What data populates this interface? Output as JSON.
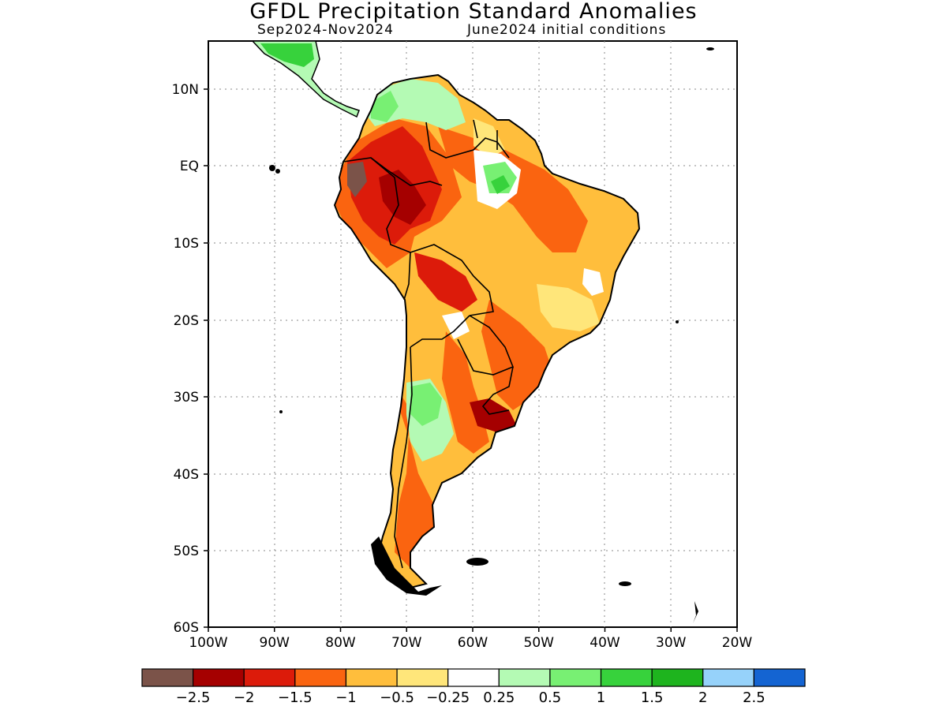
{
  "title": "GFDL Precipitation Standard Anomalies",
  "subtitle_period": "Sep2024-Nov2024",
  "subtitle_init": "June2024 initial conditions",
  "lat_labels": [
    "10N",
    "EQ",
    "10S",
    "20S",
    "30S",
    "40S",
    "50S",
    "60S"
  ],
  "lon_labels": [
    "100W",
    "90W",
    "80W",
    "70W",
    "60W",
    "50W",
    "40W",
    "30W",
    "20W"
  ],
  "colorbar": {
    "colors": [
      "#7b5349",
      "#a50000",
      "#dc1b0a",
      "#fa6410",
      "#ffbe3c",
      "#ffe67a",
      "#ffffff",
      "#b4fab4",
      "#78f073",
      "#37d23c",
      "#1eb41e",
      "#96d2fa",
      "#1464d2"
    ],
    "labels": [
      "−2.5",
      "−2",
      "−1.5",
      "−1",
      "−0.5",
      "−0.25",
      "0.25",
      "0.5",
      "1",
      "1.5",
      "2",
      "2.5"
    ]
  },
  "anomaly_regions": [
    {
      "name": "northwest-amazon-dry",
      "level": "-2"
    },
    {
      "name": "ecuador-dry-core",
      "level": "-2.5"
    },
    {
      "name": "western-amazon-dry",
      "level": "-1.5"
    },
    {
      "name": "central-brazil-dry",
      "level": "-0.5"
    },
    {
      "name": "bolivia-dry",
      "level": "-1.5"
    },
    {
      "name": "rio-de-la-plata-dry",
      "level": "-2"
    },
    {
      "name": "caribbean-coast-wet",
      "level": "0.5"
    },
    {
      "name": "guiana-wet",
      "level": "1"
    },
    {
      "name": "central-argentina-wet",
      "level": "0.5"
    },
    {
      "name": "central-america-wet",
      "level": "1"
    }
  ]
}
